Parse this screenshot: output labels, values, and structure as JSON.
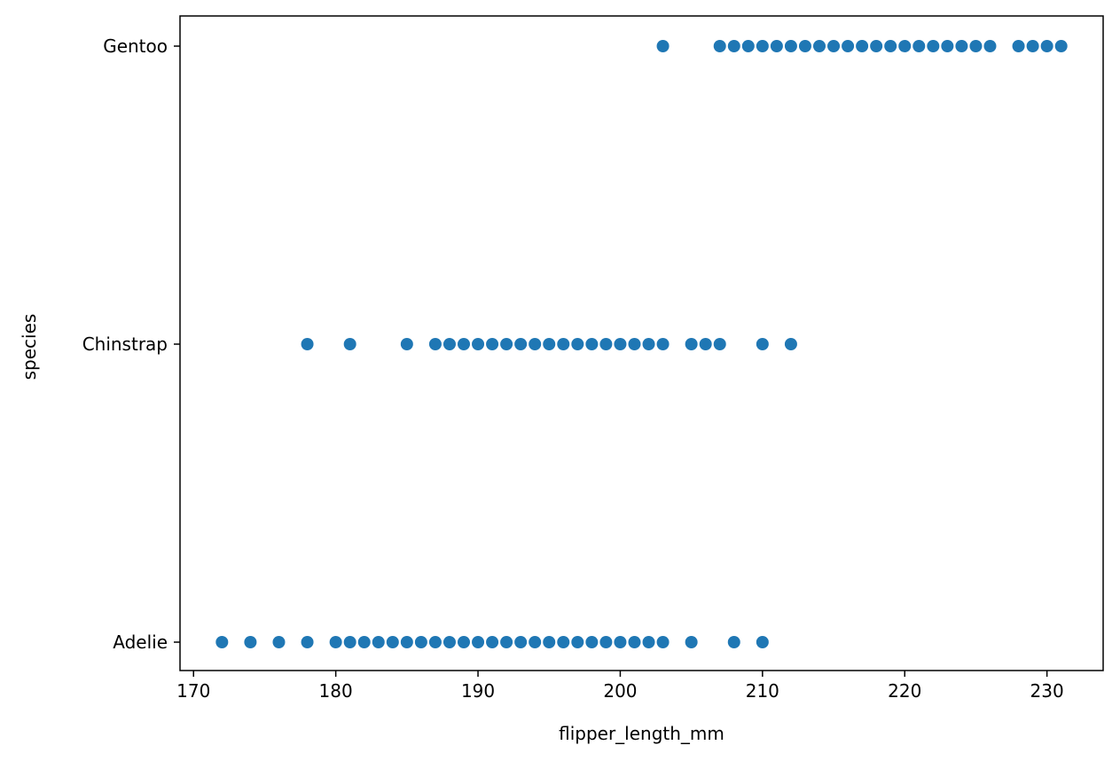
{
  "chart_data": {
    "type": "scatter",
    "xlabel": "flipper_length_mm",
    "ylabel": "species",
    "xlim": [
      169.05,
      233.95
    ],
    "categories": [
      "Adelie",
      "Chinstrap",
      "Gentoo"
    ],
    "x_ticks": [
      170,
      180,
      190,
      200,
      210,
      220,
      230
    ],
    "grid": false,
    "marker_color": "#1f77b4",
    "series": [
      {
        "category": "Adelie",
        "x": [
          172,
          174,
          176,
          178,
          180,
          181,
          182,
          183,
          184,
          185,
          186,
          187,
          188,
          189,
          190,
          191,
          192,
          193,
          194,
          195,
          196,
          197,
          198,
          199,
          200,
          201,
          202,
          203,
          205,
          208,
          210
        ]
      },
      {
        "category": "Chinstrap",
        "x": [
          178,
          181,
          185,
          187,
          188,
          189,
          190,
          191,
          192,
          193,
          194,
          195,
          196,
          197,
          198,
          199,
          200,
          201,
          202,
          203,
          205,
          206,
          207,
          210,
          212
        ]
      },
      {
        "category": "Gentoo",
        "x": [
          203,
          207,
          208,
          209,
          210,
          211,
          212,
          213,
          214,
          215,
          216,
          217,
          218,
          219,
          220,
          221,
          222,
          223,
          224,
          225,
          226,
          228,
          229,
          230,
          231
        ]
      }
    ]
  }
}
